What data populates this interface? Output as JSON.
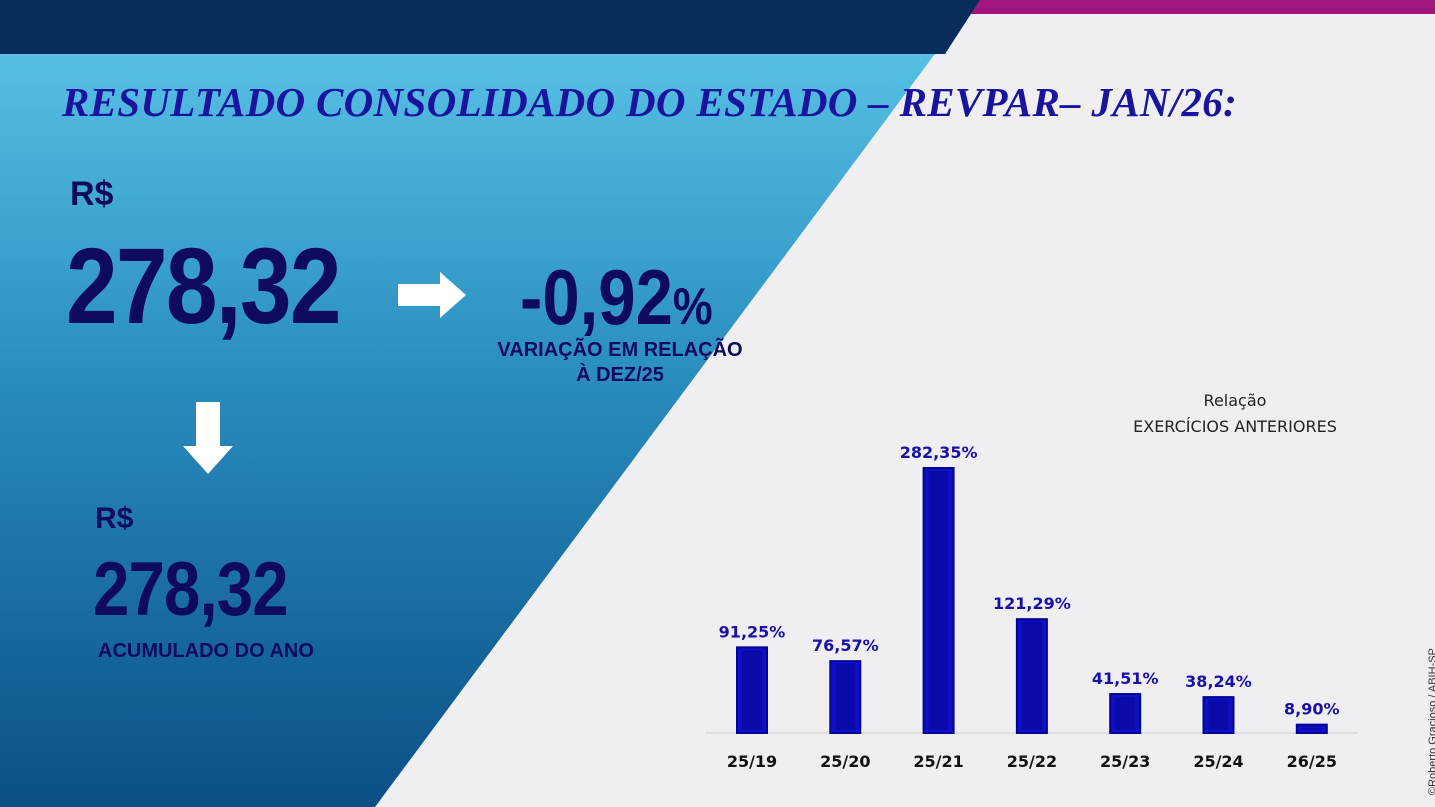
{
  "slide": {
    "title": "RESULTADO CONSOLIDADO DO ESTADO – REVPAR– JAN/26:",
    "monthly": {
      "currency": "R$",
      "value": "278,32"
    },
    "variation": {
      "value": "-0,92",
      "unit": "%",
      "label_line1": "VARIAÇÃO EM RELAÇÃO",
      "label_line2": "À DEZ/25"
    },
    "year": {
      "currency": "R$",
      "value": "278,32",
      "label": "ACUMULADO DO ANO"
    },
    "chart_title_line1": "Relação",
    "chart_title_line2": "EXERCÍCIOS ANTERIORES",
    "credit": "©Roberto Gracioso / ABIH-SP",
    "icons": {
      "right_arrow": "arrow-right-icon",
      "down_arrow": "arrow-down-icon"
    },
    "colors": {
      "title": "#1a139e",
      "text": "#0e0b5c",
      "bar": "#0f0fc7",
      "bar_dark": "#04048f",
      "label": "#1a0fa8",
      "top_band": "#082c5c",
      "top_accent": "#a0157f"
    }
  },
  "chart_data": {
    "type": "bar",
    "title": "Relação EXERCÍCIOS ANTERIORES",
    "categories": [
      "25/19",
      "25/20",
      "25/21",
      "25/22",
      "25/23",
      "25/24",
      "26/25"
    ],
    "values": [
      91.25,
      76.57,
      282.35,
      121.29,
      41.51,
      38.24,
      8.9
    ],
    "labels": [
      "91,25%",
      "76,57%",
      "282,35%",
      "121,29%",
      "41,51%",
      "38,24%",
      "8,90%"
    ],
    "ylim": [
      0,
      282.35
    ],
    "grid": false,
    "legend": "none"
  }
}
